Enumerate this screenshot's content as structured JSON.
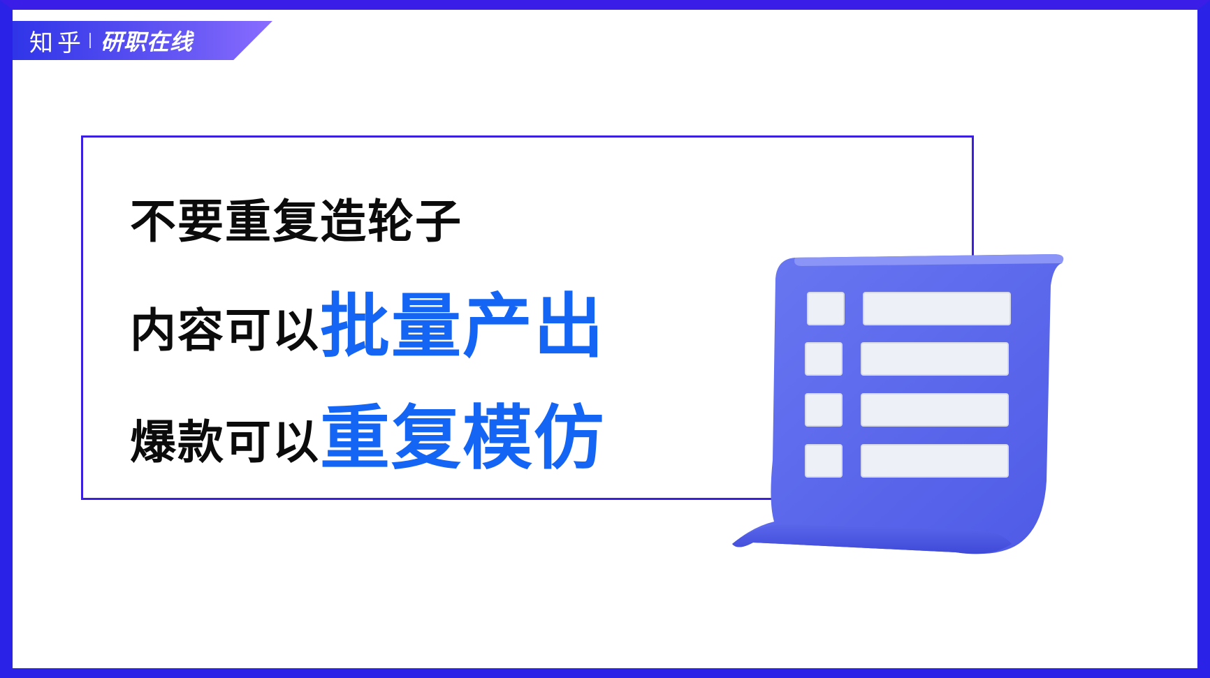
{
  "brand": {
    "logo": "知乎",
    "name": "研职在线"
  },
  "content": {
    "line1": "不要重复造轮子",
    "line2_prefix": "内容可以",
    "line2_highlight": "批量产出",
    "line3_prefix": "爆款可以",
    "line3_highlight": "重复模仿"
  },
  "colors": {
    "frame": "#3b1fe0",
    "highlight": "#1565f5",
    "border": "#2a22e6"
  },
  "illustration": {
    "icon": "document-list-icon"
  }
}
